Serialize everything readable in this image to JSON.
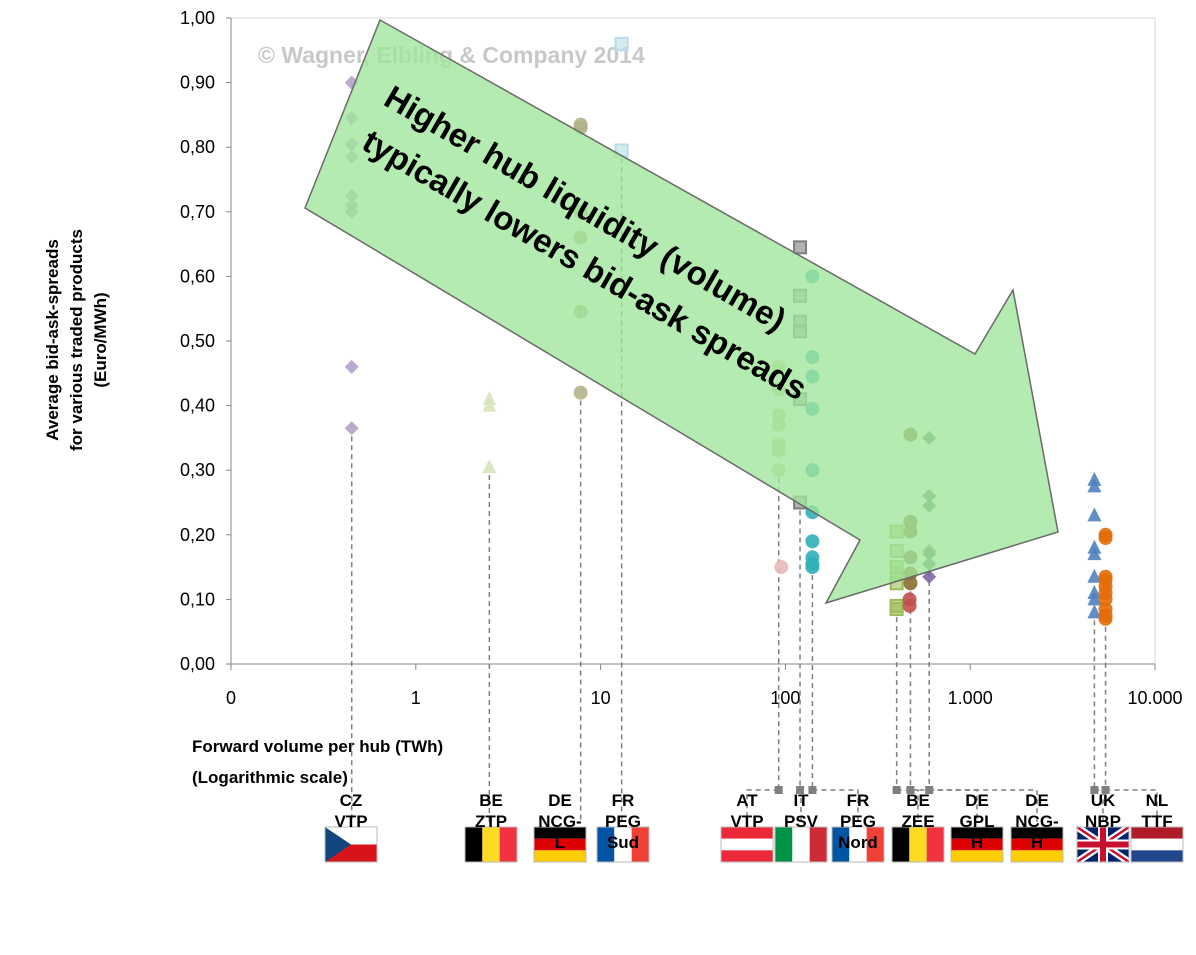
{
  "chart_data": {
    "type": "scatter",
    "log_x": true,
    "grid": false,
    "watermark": "© Wagner, Elbling & Company 2014",
    "annotation": [
      "Higher hub liquidity (volume)",
      "typically lowers bid-ask spreads"
    ],
    "y_label": [
      "Average bid-ask-spreads",
      "for various traded products",
      "(Euro/MWh)"
    ],
    "x_label": [
      "Forward volume per hub (TWh)",
      "(Logarithmic scale)"
    ],
    "xlim": [
      0.1,
      10000
    ],
    "xticks": [
      {
        "value": 0.1,
        "label": "0"
      },
      1,
      10,
      100,
      {
        "value": 1000,
        "label": "1.000"
      },
      {
        "value": 10000,
        "label": "10.000"
      }
    ],
    "ylim": [
      0,
      1
    ],
    "yticks": [
      {
        "value": 0,
        "label": "0,00"
      },
      {
        "value": 0.1,
        "label": "0,10"
      },
      {
        "value": 0.2,
        "label": "0,20"
      },
      {
        "value": 0.3,
        "label": "0,30"
      },
      {
        "value": 0.4,
        "label": "0,40"
      },
      {
        "value": 0.5,
        "label": "0,50"
      },
      {
        "value": 0.6,
        "label": "0,60"
      },
      {
        "value": 0.7,
        "label": "0,70"
      },
      {
        "value": 0.8,
        "label": "0,80"
      },
      {
        "value": 0.9,
        "label": "0,90"
      },
      {
        "value": 1,
        "label": "1,00"
      }
    ],
    "series": [
      {
        "name": "CZ VTP",
        "x": 0.45,
        "marker": "diamond",
        "color": "#b3a2c7",
        "values": [
          0.9,
          0.845,
          0.805,
          0.785,
          0.725,
          0.71,
          0.7,
          0.46,
          0.365
        ]
      },
      {
        "name": "BE ZTP",
        "x": 2.5,
        "marker": "triangle",
        "color": "#d7e4bd",
        "values": [
          0.41,
          0.4,
          0.305
        ]
      },
      {
        "name": "DE NCG-L",
        "x": 7.8,
        "marker": "circle",
        "color": "#b3b38a",
        "values": [
          0.835,
          0.83,
          0.7,
          0.66,
          0.545,
          0.42
        ]
      },
      {
        "name": "FR PEG Sud",
        "x": 13,
        "marker": "square",
        "color": "#b7dee8",
        "values": [
          0.96,
          0.795
        ]
      },
      {
        "name": "AT VTP",
        "x": 92,
        "marker": "circle",
        "color": "#c3d69b",
        "values": [
          0.46,
          0.425,
          0.385,
          0.37,
          0.34,
          0.33,
          0.3
        ]
      },
      {
        "name": "IT PSV",
        "x": 120,
        "marker": "square",
        "color": "#7f7f7f",
        "values": [
          0.645,
          0.57,
          0.53,
          0.515,
          0.41,
          0.25
        ]
      },
      {
        "name": "FR PEG Nord",
        "x": 140,
        "marker": "circle",
        "color": "#31b0b8",
        "values": [
          0.6,
          0.475,
          0.445,
          0.395,
          0.3,
          0.235,
          0.19,
          0.165,
          0.155,
          0.15
        ]
      },
      {
        "name": "BE ZEE",
        "x": 400,
        "marker": "square",
        "color": "#9bbb59",
        "values": [
          0.205,
          0.175,
          0.15,
          0.14,
          0.125,
          0.09,
          0.085
        ]
      },
      {
        "name": "DE GPL H",
        "x": 475,
        "marker": "circle",
        "color": "#8c6d31",
        "values": [
          0.355,
          0.22,
          0.205,
          0.165,
          0.14,
          0.125
        ]
      },
      {
        "name": "DE NCG-H",
        "x": 600,
        "marker": "diamond",
        "color": "#5f7f6f",
        "values": [
          0.35,
          0.26,
          0.245,
          0.175,
          0.17,
          0.155
        ]
      },
      {
        "name": "UK NBP",
        "x": 4700,
        "marker": "triangle",
        "color": "#4f81bd",
        "values": [
          0.285,
          0.275,
          0.23,
          0.18,
          0.17,
          0.135,
          0.11,
          0.1,
          0.08
        ]
      },
      {
        "name": "NL TTF",
        "x": 5400,
        "marker": "circle",
        "color": "#e36c09",
        "values": [
          0.2,
          0.195,
          0.135,
          0.13,
          0.12,
          0.11,
          0.1,
          0.085,
          0.075,
          0.07
        ]
      },
      {
        "x": 95,
        "marker": "circle",
        "color": "#e6b9b8",
        "values": [
          0.15
        ]
      },
      {
        "x": 470,
        "marker": "circle",
        "color": "#c0504d",
        "values": [
          0.1,
          0.09
        ]
      },
      {
        "x": 600,
        "marker": "diamond",
        "color": "#8064a2",
        "values": [
          0.135
        ]
      }
    ]
  }
}
